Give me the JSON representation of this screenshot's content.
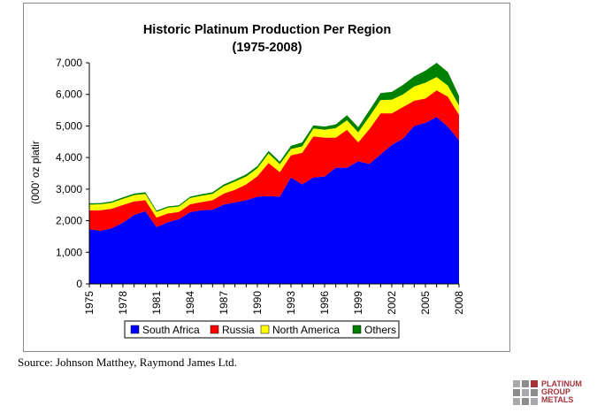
{
  "chart_data": {
    "type": "area",
    "stacked": true,
    "title": "Historic Platinum Production Per Region",
    "subtitle": "(1975-2008)",
    "ylabel": "(000' oz platir",
    "xlabel": "",
    "ylim": [
      0,
      7000
    ],
    "yticks": [
      0,
      1000,
      2000,
      3000,
      4000,
      5000,
      6000,
      7000
    ],
    "ytick_labels": [
      "0",
      "1,000",
      "2,000",
      "3,000",
      "4,000",
      "5,000",
      "6,000",
      "7,000"
    ],
    "xlim": [
      1975,
      2008
    ],
    "xticks": [
      "1975",
      "1978",
      "1981",
      "1984",
      "1987",
      "1990",
      "1993",
      "1996",
      "1999",
      "2002",
      "2005",
      "2008"
    ],
    "grid": false,
    "legend_position": "bottom",
    "x": [
      1975,
      1976,
      1977,
      1978,
      1979,
      1980,
      1981,
      1982,
      1983,
      1984,
      1985,
      1986,
      1987,
      1988,
      1989,
      1990,
      1991,
      1992,
      1993,
      1994,
      1995,
      1996,
      1997,
      1998,
      1999,
      2000,
      2001,
      2002,
      2003,
      2004,
      2005,
      2006,
      2007,
      2008
    ],
    "series": [
      {
        "name": "South Africa",
        "color": "#0000ff",
        "values": [
          1730,
          1680,
          1760,
          1940,
          2180,
          2300,
          1800,
          1950,
          2050,
          2270,
          2330,
          2350,
          2510,
          2580,
          2650,
          2760,
          2780,
          2760,
          3370,
          3150,
          3370,
          3400,
          3680,
          3680,
          3880,
          3800,
          4100,
          4400,
          4600,
          5000,
          5100,
          5280,
          4980,
          4550
        ]
      },
      {
        "name": "Russia",
        "color": "#ff0000",
        "values": [
          600,
          650,
          620,
          560,
          430,
          350,
          300,
          280,
          230,
          250,
          260,
          300,
          350,
          400,
          500,
          650,
          1050,
          780,
          700,
          1000,
          1300,
          1230,
          950,
          1200,
          600,
          1100,
          1300,
          1000,
          1000,
          800,
          770,
          850,
          950,
          800
        ]
      },
      {
        "name": "North America",
        "color": "#ffff00",
        "values": [
          180,
          190,
          190,
          190,
          200,
          200,
          180,
          180,
          170,
          200,
          200,
          200,
          230,
          260,
          250,
          250,
          300,
          250,
          200,
          200,
          250,
          250,
          300,
          300,
          320,
          400,
          420,
          430,
          400,
          450,
          500,
          420,
          350,
          300
        ]
      },
      {
        "name": "Others",
        "color": "#008000",
        "values": [
          40,
          40,
          40,
          50,
          50,
          50,
          40,
          40,
          40,
          40,
          50,
          50,
          60,
          60,
          70,
          70,
          80,
          80,
          100,
          130,
          100,
          100,
          120,
          160,
          160,
          200,
          220,
          250,
          300,
          320,
          380,
          450,
          430,
          300
        ]
      }
    ]
  },
  "source_text": "Source: Johnson Matthey, Raymond James Ltd.",
  "logo": {
    "line1": "PLATINUM",
    "line2": "GROUP",
    "line3": "METALS",
    "color": "#a4343a"
  }
}
